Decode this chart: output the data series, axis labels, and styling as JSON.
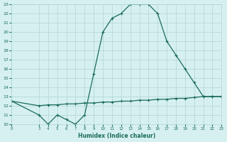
{
  "xlabel": "Humidex (Indice chaleur)",
  "line1_x": [
    0,
    3,
    4,
    5,
    6,
    7,
    8,
    9,
    10,
    11,
    12,
    13,
    14,
    15,
    16,
    17,
    18,
    19,
    20,
    21,
    22,
    23
  ],
  "line1_y": [
    12.5,
    11.0,
    10.0,
    11.0,
    10.5,
    10.0,
    11.0,
    15.5,
    20.0,
    21.5,
    22.0,
    23.0,
    23.0,
    23.0,
    22.0,
    19.0,
    17.5,
    16.0,
    14.5,
    13.0,
    13.0,
    13.0
  ],
  "line2_x": [
    0,
    3,
    4,
    5,
    6,
    7,
    8,
    9,
    10,
    11,
    12,
    13,
    14,
    15,
    16,
    17,
    18,
    19,
    20,
    21,
    22,
    23
  ],
  "line2_y": [
    12.5,
    12.0,
    12.1,
    12.1,
    12.2,
    12.2,
    12.3,
    12.3,
    12.4,
    12.4,
    12.5,
    12.5,
    12.6,
    12.6,
    12.7,
    12.7,
    12.8,
    12.8,
    12.9,
    13.0,
    13.0,
    13.0
  ],
  "line_color": "#1a6b5a",
  "bg_color": "#d6f0f0",
  "grid_color": "#b0d4d4",
  "xlim": [
    0,
    23
  ],
  "ylim": [
    10,
    23
  ],
  "xticks": [
    0,
    3,
    4,
    5,
    6,
    7,
    8,
    9,
    10,
    11,
    12,
    13,
    14,
    15,
    16,
    17,
    18,
    19,
    20,
    21,
    22,
    23
  ],
  "yticks": [
    10,
    11,
    12,
    13,
    14,
    15,
    16,
    17,
    18,
    19,
    20,
    21,
    22,
    23
  ],
  "marker": "+",
  "marker_size": 3,
  "line_width": 0.9
}
